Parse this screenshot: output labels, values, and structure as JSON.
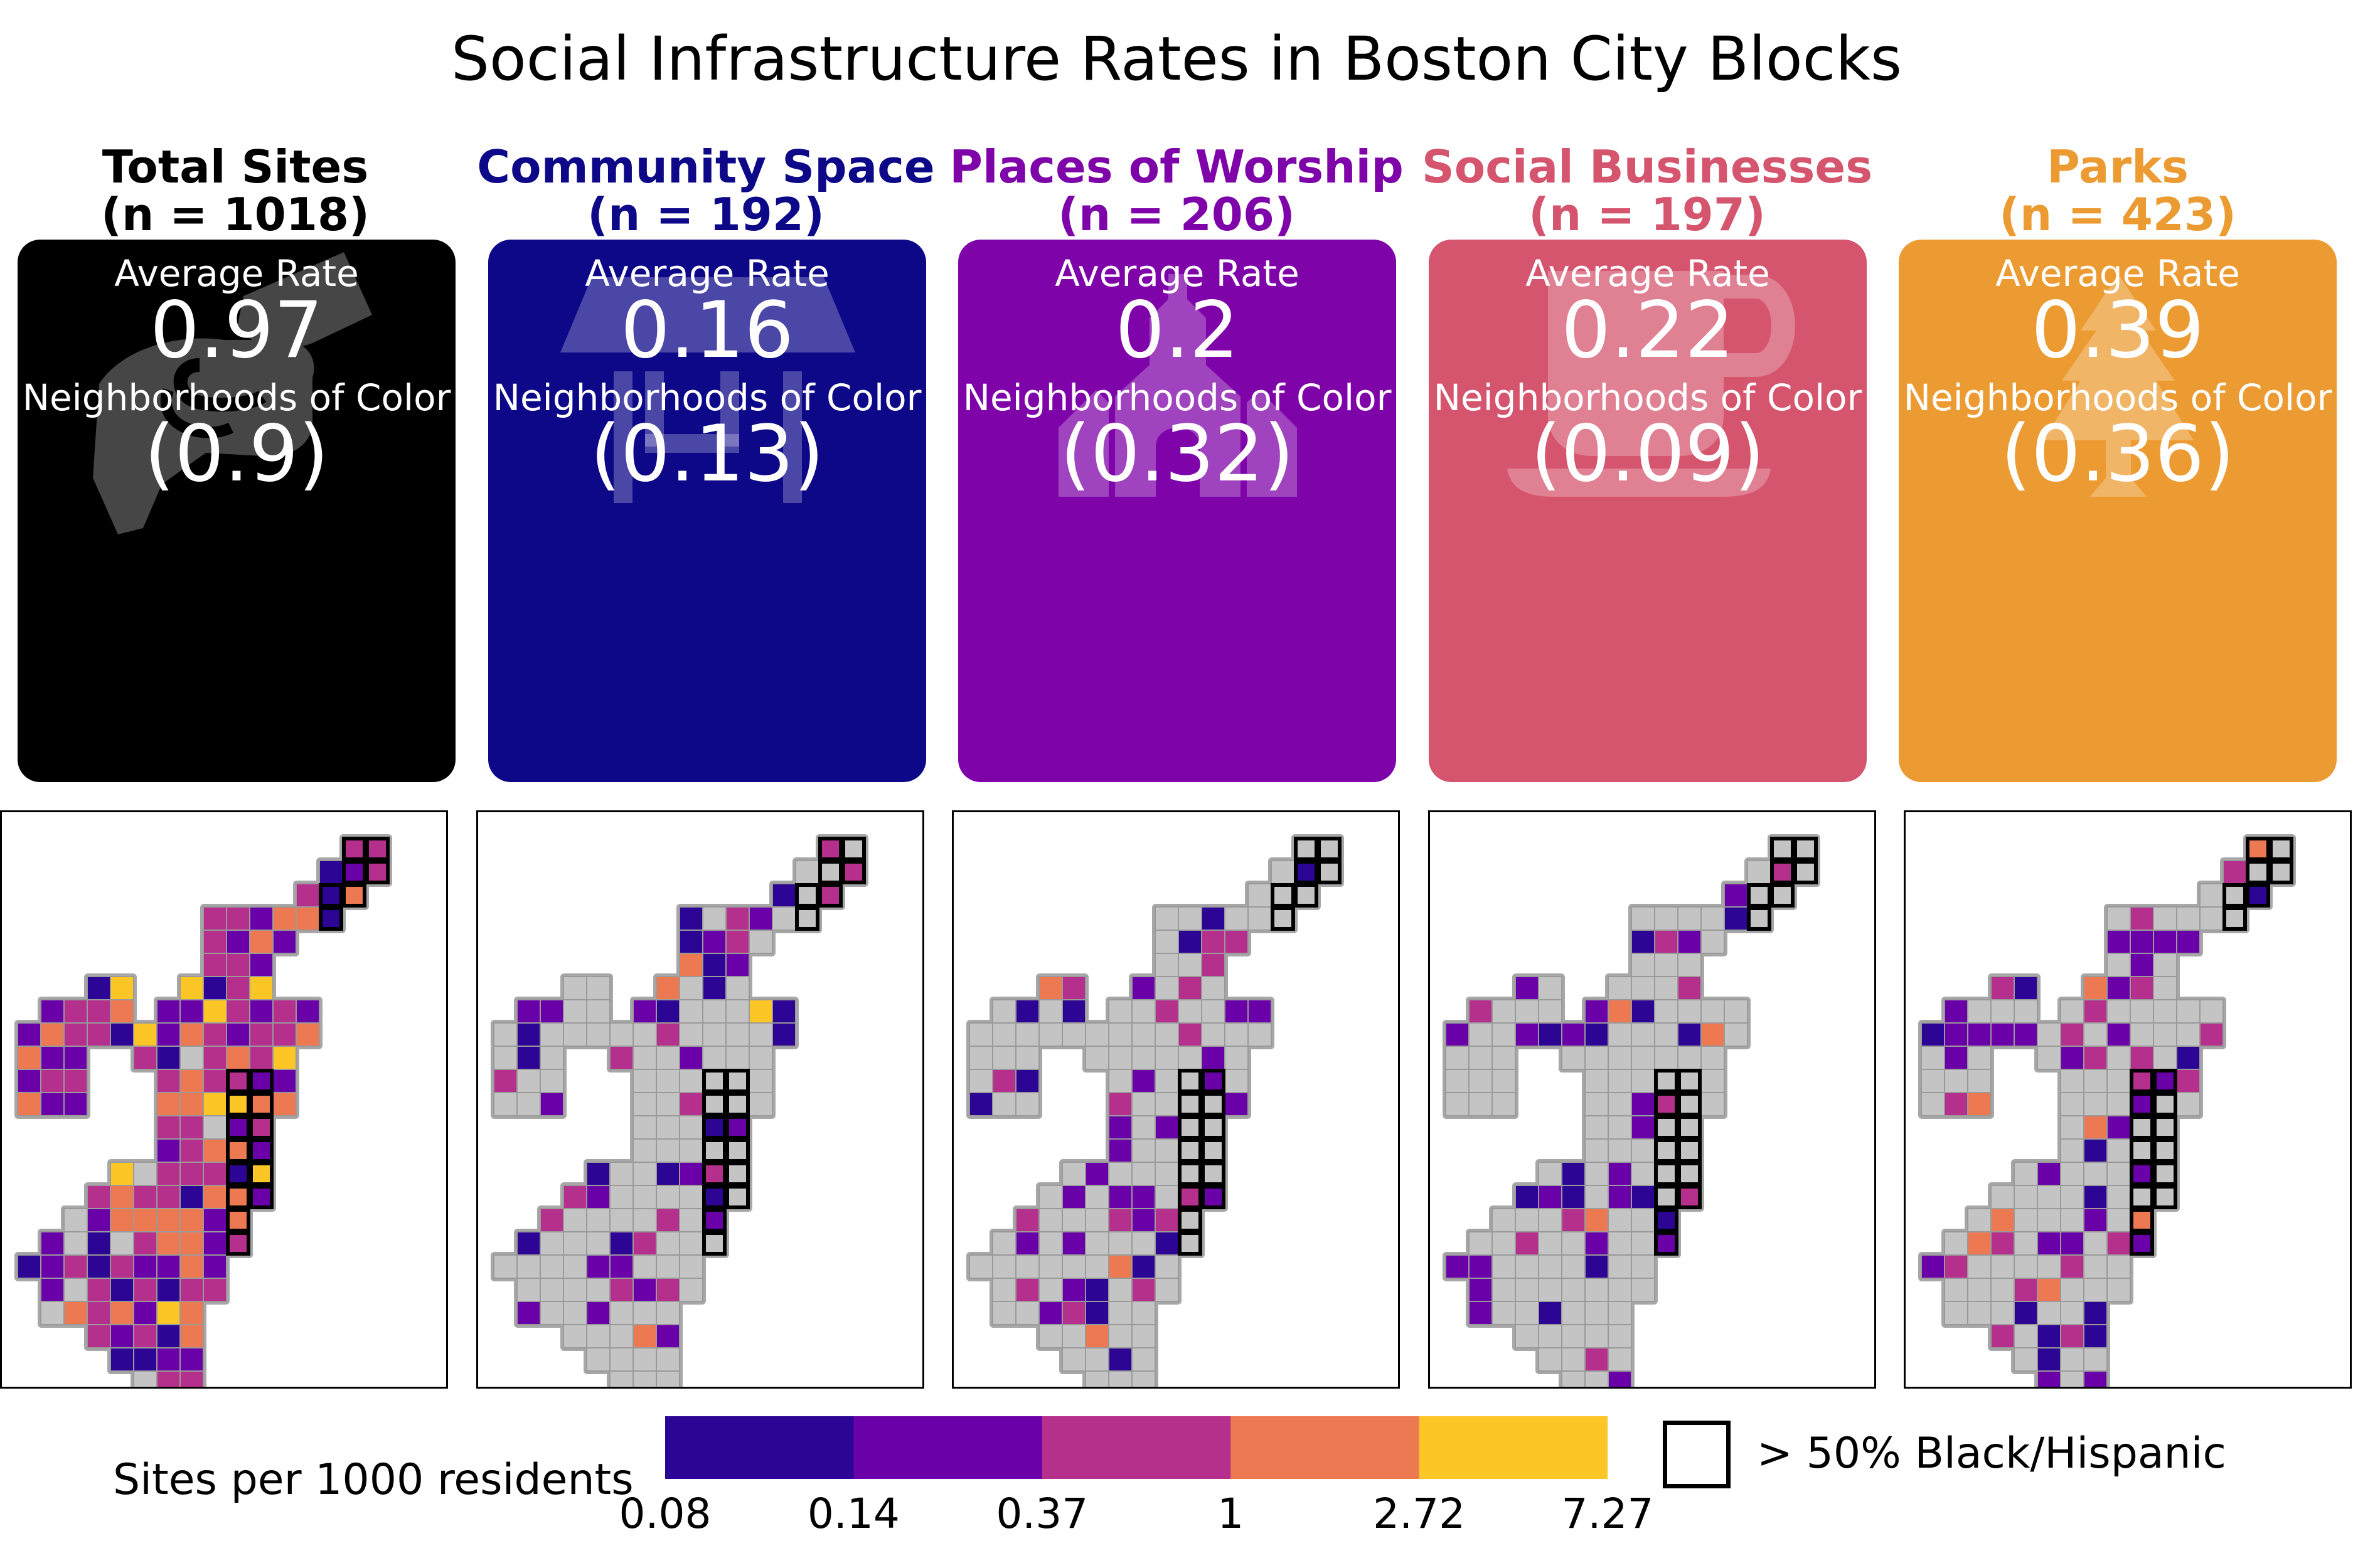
{
  "title": "Social Infrastructure Rates in Boston City Blocks",
  "chart_data": {
    "type": "heatmap",
    "title": "Social Infrastructure Rates in Boston City Blocks",
    "panels": [
      {
        "name": "Total Sites",
        "n_label": "(n = 1018)",
        "color": "#000000",
        "icon": "handshake-icon",
        "avg_label": "Average Rate",
        "avg_value": "0.97",
        "noc_label": "Neighborhoods of Color",
        "noc_value": "(0.9)"
      },
      {
        "name": "Community Space",
        "n_label": "(n = 192)",
        "color": "#0d0887",
        "icon": "pavilion-icon",
        "avg_label": "Average Rate",
        "avg_value": "0.16",
        "noc_label": "Neighborhoods of Color",
        "noc_value": "(0.13)"
      },
      {
        "name": "Places of Worship",
        "n_label": "(n = 206)",
        "color": "#7e03a8",
        "icon": "church-icon",
        "avg_label": "Average Rate",
        "avg_value": "0.2",
        "noc_label": "Neighborhoods of Color",
        "noc_value": "(0.32)"
      },
      {
        "name": "Social Businesses",
        "n_label": "(n = 197)",
        "color": "#d5546e",
        "icon": "coffee-cup-icon",
        "avg_label": "Average Rate",
        "avg_value": "0.22",
        "noc_label": "Neighborhoods of Color",
        "noc_value": "(0.09)"
      },
      {
        "name": "Parks",
        "n_label": "(n = 423)",
        "color": "#ec9b32",
        "icon": "pine-tree-icon",
        "avg_label": "Average Rate",
        "avg_value": "0.39",
        "noc_label": "Neighborhoods of Color",
        "noc_value": "(0.36)"
      }
    ],
    "colorbar": {
      "label": "Sites per 1000 residents",
      "ticks": [
        "0.08",
        "0.14",
        "0.37",
        "1",
        "2.72",
        "7.27"
      ],
      "colors": [
        "#2c0594",
        "#6a00a8",
        "#b52f8c",
        "#ed7953",
        "#fdc627"
      ]
    },
    "highlight_legend": "> 50% Black/Hispanic",
    "no_data_color": "#c4c4c4"
  }
}
